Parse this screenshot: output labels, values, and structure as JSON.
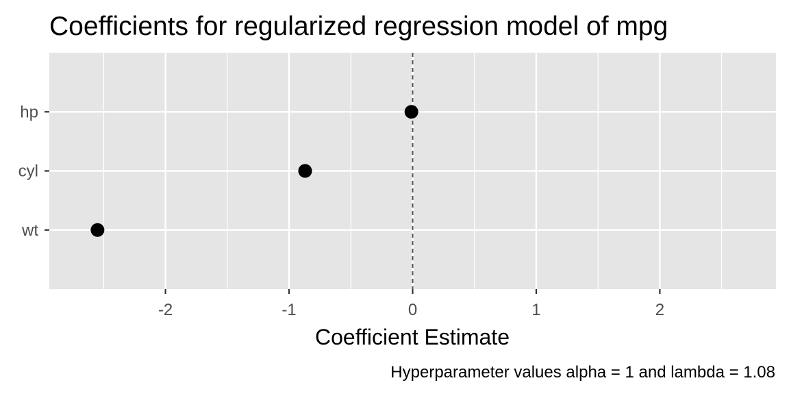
{
  "chart_data": {
    "type": "scatter",
    "title": "Coefficients for regularized regression model of mpg",
    "xlabel": "Coefficient Estimate",
    "ylabel": "",
    "caption": "Hyperparameter values alpha = 1 and lambda = 1.08",
    "categories": [
      "wt",
      "cyl",
      "hp"
    ],
    "points": [
      {
        "term": "hp",
        "estimate": -0.01
      },
      {
        "term": "cyl",
        "estimate": -0.87
      },
      {
        "term": "wt",
        "estimate": -2.55
      }
    ],
    "x_ticks": [
      -2,
      -1,
      0,
      1,
      2
    ],
    "x_tick_labels": [
      "-2",
      "-1",
      "0",
      "1",
      "2"
    ],
    "xlim": [
      -2.94,
      2.94
    ],
    "reference_line": {
      "x": 0,
      "style": "dashed"
    },
    "grid": true,
    "legend": "none",
    "colors": {
      "panel_background": "#e5e5e5",
      "gridline": "#ffffff",
      "point": "#000000",
      "reference_line": "#555555",
      "tick_text": "#4d4d4d"
    }
  }
}
